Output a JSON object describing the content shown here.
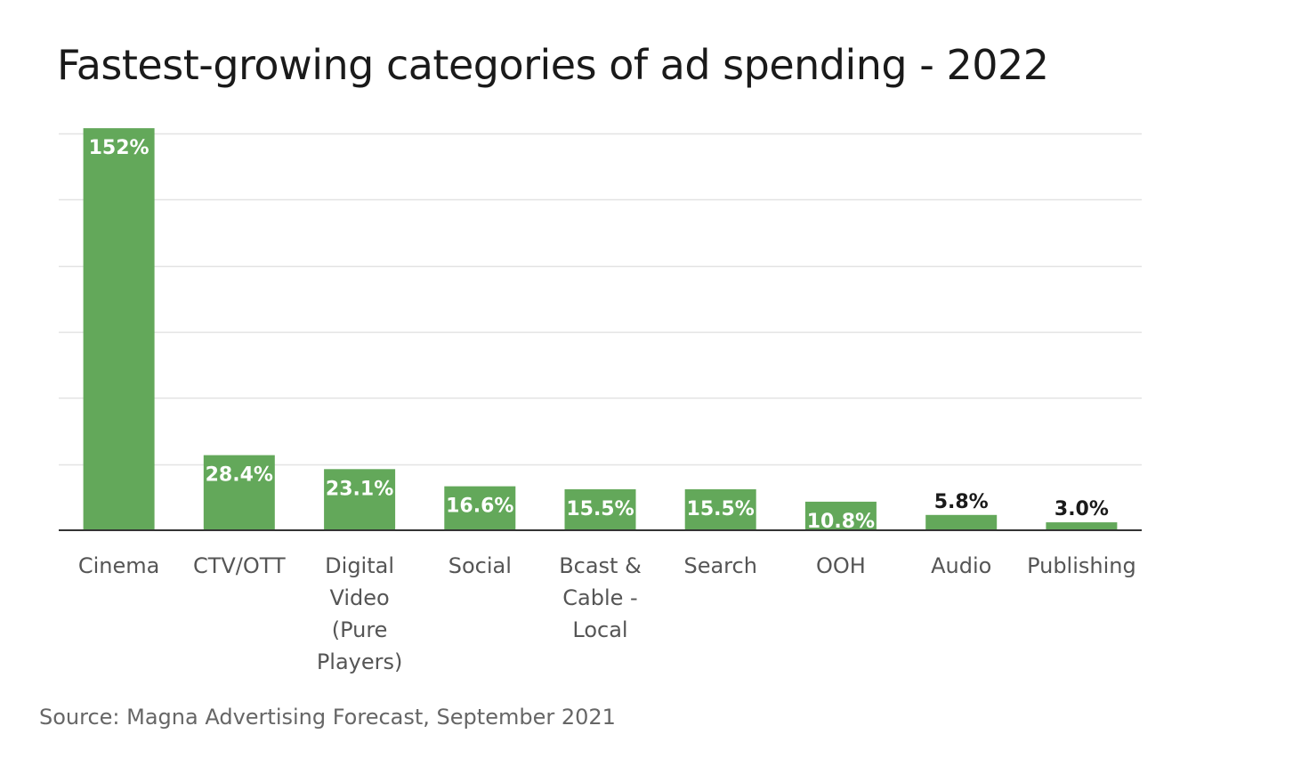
{
  "chart_data": {
    "type": "bar",
    "title": "Fastest-growing categories of ad spending - 2022",
    "categories": [
      "Cinema",
      "CTV/OTT",
      "Digital Video (Pure Players)",
      "Social",
      "Bcast & Cable - Local",
      "Search",
      "OOH",
      "Audio",
      "Publishing"
    ],
    "category_label_lines": [
      [
        "Cinema"
      ],
      [
        "CTV/OTT"
      ],
      [
        "Digital",
        "Video",
        "(Pure",
        "Players)"
      ],
      [
        "Social"
      ],
      [
        "Bcast &",
        "Cable -",
        "Local"
      ],
      [
        "Search"
      ],
      [
        "OOH"
      ],
      [
        "Audio"
      ],
      [
        "Publishing"
      ]
    ],
    "values": [
      152,
      28.4,
      23.1,
      16.6,
      15.5,
      15.5,
      10.8,
      5.8,
      3.0
    ],
    "value_labels": [
      "152%",
      "28.4%",
      "23.1%",
      "16.6%",
      "15.5%",
      "15.5%",
      "10.8%",
      "5.8%",
      "3.0%"
    ],
    "xlabel": "",
    "ylabel": "",
    "ylim": [
      0,
      150
    ],
    "grid": true,
    "bar_color": "#63a85a",
    "source": "Source: Magna Advertising Forecast, September 2021"
  }
}
